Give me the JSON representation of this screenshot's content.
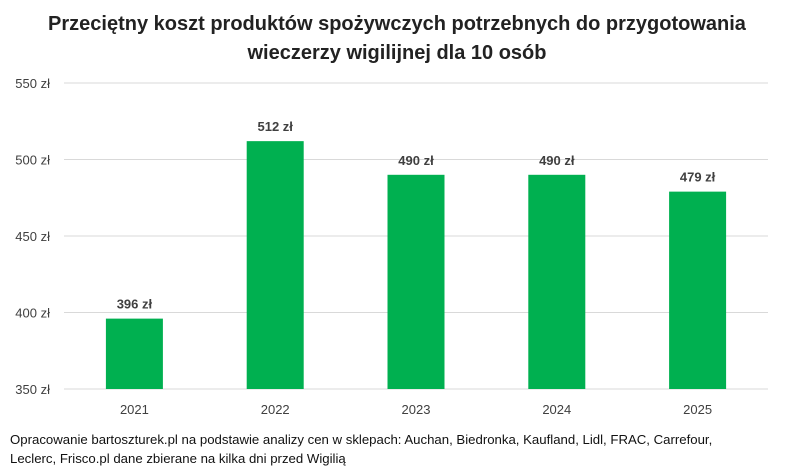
{
  "chart_data": {
    "type": "bar",
    "title_lines": [
      "Przeciętny koszt produktów spożywczych potrzebnych do przygotowania",
      "wieczerzy wigilijnej dla 10 osób"
    ],
    "categories": [
      "2021",
      "2022",
      "2023",
      "2024",
      "2025"
    ],
    "values": [
      396,
      512,
      490,
      490,
      479
    ],
    "data_labels": [
      "396 zł",
      "512 zł",
      "490 zł",
      "490 zł",
      "479 zł"
    ],
    "yticks": [
      {
        "value": 350,
        "label": "350 zł"
      },
      {
        "value": 400,
        "label": "400 zł"
      },
      {
        "value": 450,
        "label": "450 zł"
      },
      {
        "value": 500,
        "label": "500 zł"
      },
      {
        "value": 550,
        "label": "550 zł"
      }
    ],
    "ylim": [
      350,
      550
    ],
    "grid": true,
    "bar_color": "#00B050",
    "gridline_color": "#d9d9d9",
    "text_color": "#404040"
  },
  "footnote_lines": [
    "Opracowanie bartoszturek.pl na podstawie analizy cen w sklepach: Auchan, Biedronka, Kaufland, Lidl, FRAC, Carrefour,",
    "Leclerc, Frisco.pl dane zbierane na kilka dni przed Wigilią"
  ]
}
